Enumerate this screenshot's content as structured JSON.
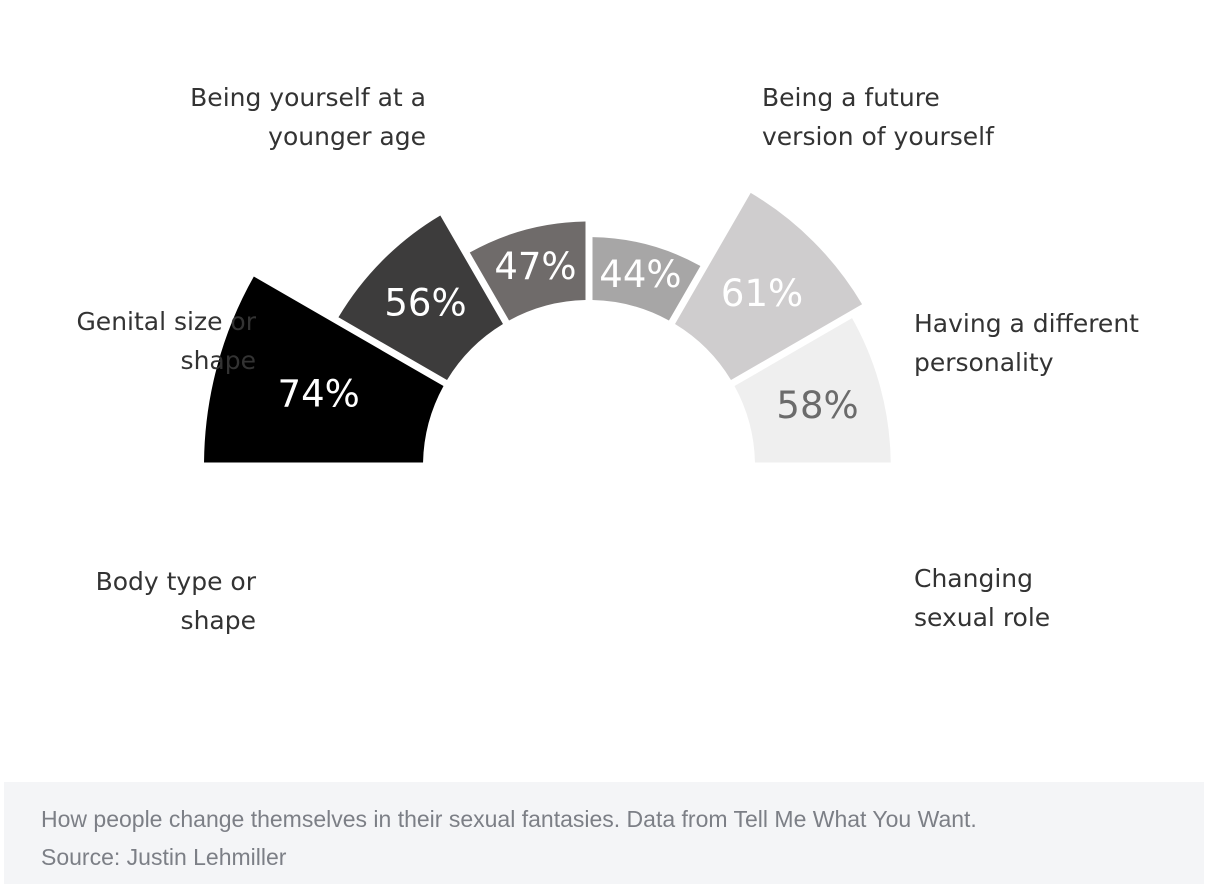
{
  "chart_data": {
    "type": "pie",
    "layout": "half-ring (upper semicircle, three segments each side)",
    "categories": [
      "Body type or shape",
      "Genital size or shape",
      "Being yourself at a younger age",
      "Being a future version of yourself",
      "Having a different personality",
      "Changing sexual role"
    ],
    "values": [
      74,
      56,
      47,
      44,
      61,
      58
    ],
    "value_labels": [
      "74%",
      "56%",
      "47%",
      "44%",
      "61%",
      "58%"
    ],
    "label_lines": [
      [
        "Body type or",
        "shape"
      ],
      [
        "Genital size or",
        "shape"
      ],
      [
        "Being yourself at a",
        "younger age"
      ],
      [
        "Being a future",
        "version of yourself"
      ],
      [
        "Having a different",
        "personality"
      ],
      [
        "Changing",
        "sexual role"
      ]
    ],
    "colors": [
      "#000000",
      "#3d3c3c",
      "#6f6b6a",
      "#a7a6a6",
      "#cfcdce",
      "#efefef"
    ],
    "value_label_colors": [
      "#ffffff",
      "#ffffff",
      "#ffffff",
      "#ffffff",
      "#ffffff",
      "#6b6b6b"
    ],
    "grid": false,
    "legend": "none"
  },
  "caption": {
    "text": "How people change themselves in their sexual fantasies. Data from Tell Me What You Want.",
    "source": "Source: Justin Lehmiller"
  }
}
